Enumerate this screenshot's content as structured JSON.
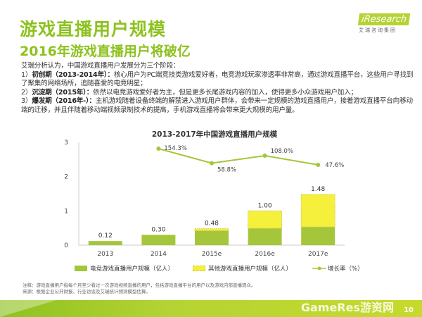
{
  "header": {
    "title": "游戏直播用户规模",
    "subtitle": "2016年游戏直播用户将破亿",
    "logo": {
      "brand": "iResearch",
      "tagline": "艾瑞咨询集团"
    }
  },
  "intro": {
    "lead": "艾瑞分析认为，中国游戏直播用户发展分为三个阶段：",
    "stages": [
      {
        "prefix": "1）",
        "name": "初创期（2013-2014年）：",
        "text": "核心用户为PC端竞技类游戏爱好者，电竞游戏玩家渗透率非常高，通过游戏直播平台，这些用户寻找到了聚集的网络场所，追随喜爱的电竞明星；"
      },
      {
        "prefix": "2）",
        "name": "沉淀期（2015年）：",
        "text": "依然以电竞游戏爱好者为主，但是更多长尾游戏内容的加入，使得更多小众游戏用户加入；"
      },
      {
        "prefix": "3）",
        "name": "爆发期（2016年-）：",
        "text": "主机游戏随着设备终端的解禁进入游戏用户群体，会带来一定规模的游戏直播用户，接着游戏直播平台向移动端的迁移，并且伴随着移动端视频录制技术的提高，手机游戏直播将会带来更大规模的用户量。"
      }
    ]
  },
  "chart_data": {
    "type": "bar",
    "stacked": true,
    "title": "2013-2017年中国游戏直播用户规模",
    "categories": [
      "2013",
      "2014",
      "2015e",
      "2016e",
      "2017e"
    ],
    "ylim": [
      0,
      3
    ],
    "yticks": [
      "0",
      "1",
      "2",
      "3"
    ],
    "grid": false,
    "legend_position": "bottom",
    "series": [
      {
        "name": "电竞游戏直播用户规模（亿人）",
        "type": "bar",
        "color": "#a5c63b",
        "values": [
          0.12,
          0.3,
          0.42,
          0.49,
          0.53
        ]
      },
      {
        "name": "其他游戏直播用户规模（亿人）",
        "type": "bar",
        "color": "#f5f03c",
        "values": [
          0,
          0,
          0.06,
          0.51,
          0.95
        ]
      },
      {
        "name": "增长率（%）",
        "type": "line",
        "color": "#a5c63b",
        "values": [
          null,
          154.3,
          58.8,
          108.0,
          47.6
        ]
      }
    ],
    "total_labels": [
      "0.12",
      "0.30",
      "0.48",
      "1.00",
      "1.48"
    ],
    "rate_labels": [
      "",
      "154.3%",
      "58.8%",
      "108.0%",
      "47.6%"
    ]
  },
  "notes": {
    "note": "注释：游戏直播用户指每个月至少看过一次游戏视频直播的用户，包括游戏直播平台的用户以及游戏内部直播观众。",
    "source": "来源：根据企业公开财报、行业访谈及艾瑞统计预测模型估算。"
  },
  "footer": {
    "page_number": "10",
    "watermark": "GameRes游资网"
  }
}
